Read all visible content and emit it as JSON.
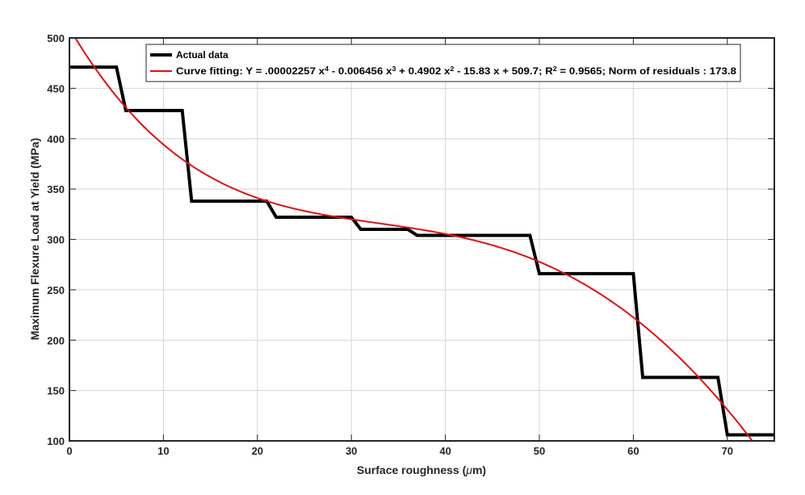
{
  "chart_data": {
    "type": "line",
    "title": "",
    "xlabel_parts": [
      "Surface roughness (",
      "μ",
      "m)"
    ],
    "ylabel": "Maximum Flexure Load at Yield (MPa)",
    "xlim": [
      0,
      75
    ],
    "ylim": [
      100,
      500
    ],
    "xticks": [
      0,
      10,
      20,
      30,
      40,
      50,
      60,
      70
    ],
    "yticks": [
      100,
      150,
      200,
      250,
      300,
      350,
      400,
      450,
      500
    ],
    "grid": true,
    "legend_position": "top-right",
    "series": [
      {
        "name": "Actual data",
        "color": "#000000",
        "style": "step",
        "x": [
          0,
          5,
          6,
          12,
          13,
          21,
          22,
          30,
          31,
          36,
          37,
          49,
          50,
          60,
          61,
          69,
          70,
          75
        ],
        "y": [
          471,
          471,
          428,
          428,
          338,
          338,
          322,
          322,
          310,
          310,
          304,
          304,
          266,
          266,
          163,
          163,
          106,
          106
        ]
      },
      {
        "name": "Curve fitting",
        "color": "#e01010",
        "style": "polynomial",
        "coefficients": [
          2.257e-05,
          -0.006456,
          0.4902,
          -15.83,
          509.7
        ],
        "x_range": [
          0,
          75
        ]
      }
    ],
    "legend": {
      "actual_label": "Actual data",
      "fit_label_segments": [
        {
          "t": "Curve fitting: Y = .00002257 x",
          "sup": false
        },
        {
          "t": "4",
          "sup": true
        },
        {
          "t": " - 0.006456 x",
          "sup": false
        },
        {
          "t": "3",
          "sup": true
        },
        {
          "t": " + 0.4902 x",
          "sup": false
        },
        {
          "t": "2",
          "sup": true
        },
        {
          "t": " - 15.83 x + 509.7; R",
          "sup": false
        },
        {
          "t": "2",
          "sup": true
        },
        {
          "t": " = 0.9565; Norm of residuals : 173.8",
          "sup": false
        }
      ]
    }
  }
}
